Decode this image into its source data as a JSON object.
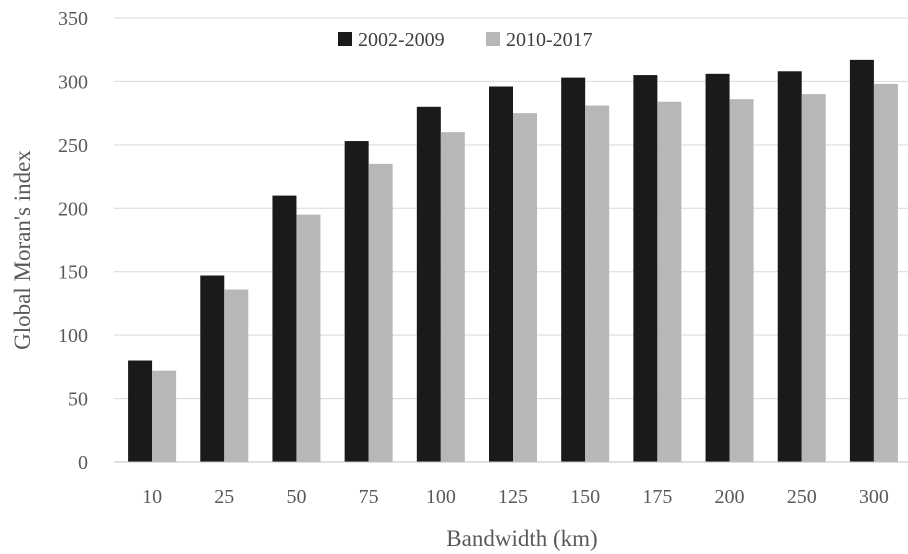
{
  "chart_data": {
    "type": "bar",
    "title": "",
    "xlabel": "Bandwidth (km)",
    "ylabel": "Global Moran's index",
    "categories": [
      "10",
      "25",
      "50",
      "75",
      "100",
      "125",
      "150",
      "175",
      "200",
      "250",
      "300"
    ],
    "series": [
      {
        "name": "2002-2009",
        "color": "#1a1a1a",
        "values": [
          80,
          147,
          210,
          253,
          280,
          296,
          303,
          305,
          306,
          308,
          317
        ]
      },
      {
        "name": "2010-2017",
        "color": "#b7b7b7",
        "values": [
          72,
          136,
          195,
          235,
          260,
          275,
          281,
          284,
          286,
          290,
          298
        ]
      }
    ],
    "ylim": [
      0,
      350
    ],
    "yticks": [
      0,
      50,
      100,
      150,
      200,
      250,
      300,
      350
    ],
    "grid": true,
    "legend_position": "top-center"
  }
}
